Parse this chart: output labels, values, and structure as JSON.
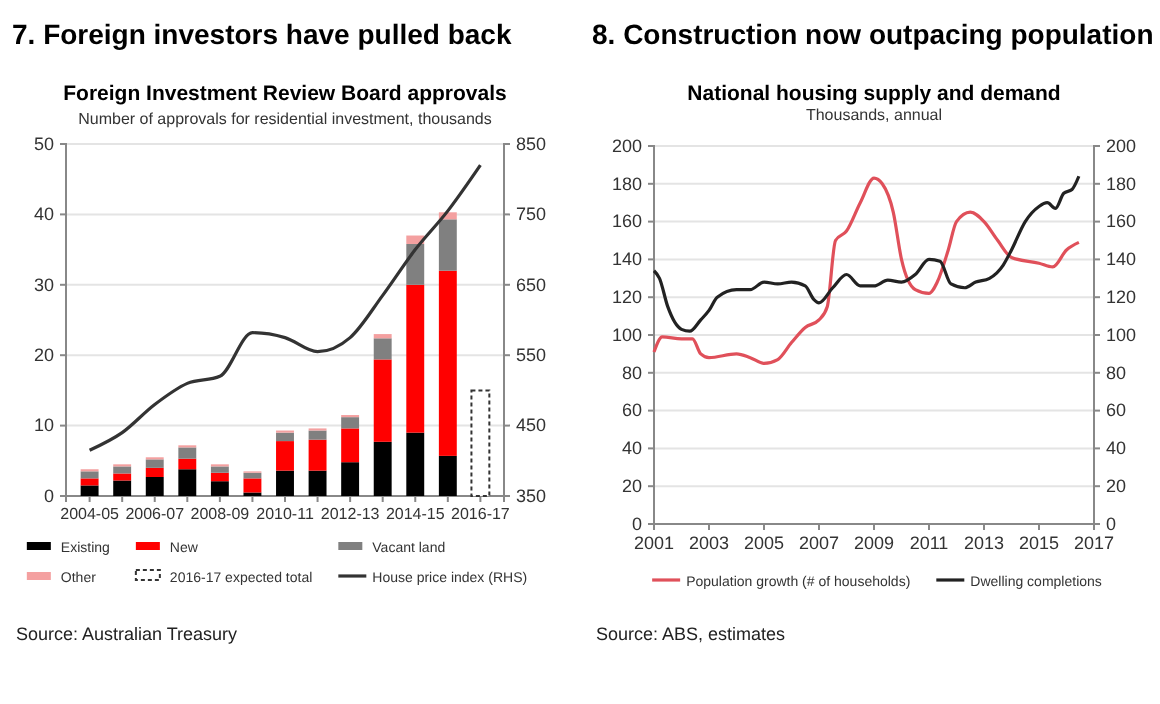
{
  "chart_data": [
    {
      "type": "bar",
      "title": "7. Foreign investors have pulled back",
      "subtitle": "Foreign Investment Review Board approvals",
      "annotations": [
        "Number of approvals for residential investment, thousands",
        "Source: Australian Treasury"
      ],
      "categories": [
        "2004-05",
        null,
        "2006-07",
        null,
        "2008-09",
        null,
        "2010-11",
        null,
        "2012-13",
        null,
        "2014-15",
        null,
        "2016-17"
      ],
      "stacked": true,
      "grid": "y",
      "legend": "bottom",
      "ylim": [
        0,
        50
      ],
      "yticks": [
        0,
        10,
        20,
        30,
        40,
        50
      ],
      "y2lim": [
        350,
        850
      ],
      "y2ticks": [
        350,
        450,
        550,
        650,
        750,
        850
      ],
      "series": [
        {
          "name": "Existing",
          "color": "#000000",
          "values": [
            1.5,
            2.2,
            2.7,
            3.8,
            2.1,
            0.5,
            3.6,
            3.6,
            4.8,
            7.7,
            9.0,
            5.7,
            null
          ]
        },
        {
          "name": "New",
          "color": "#ff0000",
          "values": [
            1.0,
            1.0,
            1.3,
            1.5,
            1.2,
            2.0,
            4.2,
            4.4,
            4.8,
            11.7,
            21.0,
            26.3,
            null
          ]
        },
        {
          "name": "Vacant land",
          "color": "#808080",
          "values": [
            1.0,
            1.0,
            1.2,
            1.6,
            0.9,
            0.8,
            1.2,
            1.3,
            1.6,
            3.0,
            5.8,
            7.3,
            null
          ]
        },
        {
          "name": "Other",
          "color": "#f4a0a0",
          "values": [
            0.3,
            0.3,
            0.3,
            0.3,
            0.3,
            0.2,
            0.3,
            0.3,
            0.3,
            0.6,
            1.2,
            1.0,
            null
          ]
        },
        {
          "name": "2016-17 expected total",
          "color": "#333333",
          "line_style": "dashed",
          "values": [
            null,
            null,
            null,
            null,
            null,
            null,
            null,
            null,
            null,
            null,
            null,
            null,
            15
          ]
        },
        {
          "name": "House price index (RHS)",
          "type": "line",
          "axis": "y2",
          "color": "#333333",
          "values": [
            415,
            440,
            480,
            510,
            520,
            582,
            575,
            555,
            575,
            635,
            700,
            755,
            820
          ]
        }
      ]
    },
    {
      "type": "line",
      "title": "8. Construction now outpacing population",
      "subtitle": "National housing supply and demand",
      "annotations": [
        "Thousands, annual",
        "Source: ABS, estimates"
      ],
      "grid": "y",
      "legend": "bottom",
      "marker": "none",
      "xlim": [
        2001,
        2017
      ],
      "xticks": [
        2001,
        2003,
        2005,
        2007,
        2009,
        2011,
        2013,
        2015,
        2017
      ],
      "ylim": [
        0,
        200
      ],
      "yticks": [
        0,
        20,
        40,
        60,
        80,
        100,
        120,
        140,
        160,
        180,
        200
      ],
      "y2lim": [
        0,
        200
      ],
      "y2ticks": [
        0,
        20,
        40,
        60,
        80,
        100,
        120,
        140,
        160,
        180,
        200
      ],
      "series": [
        {
          "name": "Population growth (# of households)",
          "color": "#e0505a",
          "x": [
            2001,
            2001.3,
            2002,
            2002.4,
            2002.7,
            2003,
            2004,
            2004.5,
            2005,
            2005.5,
            2006,
            2006.5,
            2007,
            2007.3,
            2007.6,
            2008,
            2008.5,
            2009,
            2009.3,
            2009.7,
            2010,
            2010.5,
            2011,
            2011.3,
            2011.7,
            2012,
            2012.5,
            2013,
            2013.5,
            2014,
            2015,
            2015.5,
            2016,
            2016.45
          ],
          "values": [
            91,
            99,
            98,
            98,
            90,
            88,
            90,
            88,
            85,
            87,
            96,
            104,
            108,
            115,
            150,
            155,
            170,
            183,
            180,
            165,
            140,
            124,
            122,
            128,
            145,
            160,
            165,
            160,
            150,
            141,
            138,
            136,
            145,
            149
          ]
        },
        {
          "name": "Dwelling completions",
          "color": "#222222",
          "x": [
            2001,
            2001.2,
            2001.5,
            2002,
            2002.3,
            2002.7,
            2003,
            2003.3,
            2004,
            2004.5,
            2005,
            2005.5,
            2006,
            2006.5,
            2006.8,
            2007,
            2007.5,
            2008,
            2008.5,
            2009,
            2009.5,
            2010,
            2010.5,
            2011,
            2011.4,
            2011.8,
            2012.3,
            2012.7,
            2013.2,
            2013.7,
            2014,
            2014.5,
            2015,
            2015.3,
            2015.6,
            2015.9,
            2016.2,
            2016.45
          ],
          "values": [
            134,
            130,
            115,
            103,
            102,
            108,
            113,
            120,
            124,
            124,
            128,
            127,
            128,
            126,
            119,
            117,
            125,
            132,
            126,
            126,
            129,
            128,
            132,
            140,
            139,
            127,
            125,
            128,
            130,
            137,
            145,
            160,
            168,
            170,
            167,
            175,
            177,
            184
          ]
        }
      ]
    }
  ]
}
